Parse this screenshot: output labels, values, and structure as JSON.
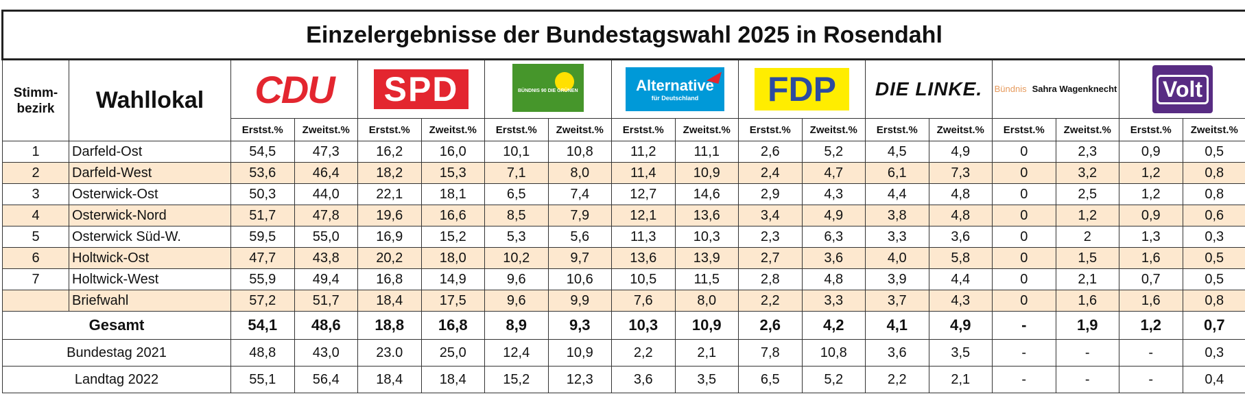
{
  "title": "Einzelergebnisse der Bundestagswahl 2025 in Rosendahl",
  "header": {
    "stimmbezirk": "Stimm-\nbezirk",
    "wahllokal": "Wahllokal",
    "erst": "Erstst.%",
    "zweit": "Zweitst.%"
  },
  "parties": [
    {
      "logo": "CDU"
    },
    {
      "logo": "SPD"
    },
    {
      "logo": "BÜNDNIS 90 DIE GRÜNEN"
    },
    {
      "logo": "Alternative",
      "logo_sub": "für Deutschland"
    },
    {
      "logo": "FDP"
    },
    {
      "logo": "DIE LINKE."
    },
    {
      "logo": "Bündnis",
      "logo_sub": "Sahra Wagenknecht"
    },
    {
      "logo": "Volt"
    }
  ],
  "rows": [
    {
      "nr": "1",
      "name": "Darfeld-Ost",
      "values": [
        "54,5",
        "47,3",
        "16,2",
        "16,0",
        "10,1",
        "10,8",
        "11,2",
        "11,1",
        "2,6",
        "5,2",
        "4,5",
        "4,9",
        "0",
        "2,3",
        "0,9",
        "0,5"
      ]
    },
    {
      "nr": "2",
      "name": "Darfeld-West",
      "values": [
        "53,6",
        "46,4",
        "18,2",
        "15,3",
        "7,1",
        "8,0",
        "11,4",
        "10,9",
        "2,4",
        "4,7",
        "6,1",
        "7,3",
        "0",
        "3,2",
        "1,2",
        "0,8"
      ]
    },
    {
      "nr": "3",
      "name": "Osterwick-Ost",
      "values": [
        "50,3",
        "44,0",
        "22,1",
        "18,1",
        "6,5",
        "7,4",
        "12,7",
        "14,6",
        "2,9",
        "4,3",
        "4,4",
        "4,8",
        "0",
        "2,5",
        "1,2",
        "0,8"
      ]
    },
    {
      "nr": "4",
      "name": "Osterwick-Nord",
      "values": [
        "51,7",
        "47,8",
        "19,6",
        "16,6",
        "8,5",
        "7,9",
        "12,1",
        "13,6",
        "3,4",
        "4,9",
        "3,8",
        "4,8",
        "0",
        "1,2",
        "0,9",
        "0,6"
      ]
    },
    {
      "nr": "5",
      "name": "Osterwick Süd-W.",
      "values": [
        "59,5",
        "55,0",
        "16,9",
        "15,2",
        "5,3",
        "5,6",
        "11,3",
        "10,3",
        "2,3",
        "6,3",
        "3,3",
        "3,6",
        "0",
        "2",
        "1,3",
        "0,3"
      ]
    },
    {
      "nr": "6",
      "name": "Holtwick-Ost",
      "values": [
        "47,7",
        "43,8",
        "20,2",
        "18,0",
        "10,2",
        "9,7",
        "13,6",
        "13,9",
        "2,7",
        "3,6",
        "4,0",
        "5,8",
        "0",
        "1,5",
        "1,6",
        "0,5"
      ]
    },
    {
      "nr": "7",
      "name": "Holtwick-West",
      "values": [
        "55,9",
        "49,4",
        "16,8",
        "14,9",
        "9,6",
        "10,6",
        "10,5",
        "11,5",
        "2,8",
        "4,8",
        "3,9",
        "4,4",
        "0",
        "2,1",
        "0,7",
        "0,5"
      ]
    },
    {
      "nr": "",
      "name": "Briefwahl",
      "values": [
        "57,2",
        "51,7",
        "18,4",
        "17,5",
        "9,6",
        "9,9",
        "7,6",
        "8,0",
        "2,2",
        "3,3",
        "3,7",
        "4,3",
        "0",
        "1,6",
        "1,6",
        "0,8"
      ]
    }
  ],
  "total": {
    "name": "Gesamt",
    "values": [
      "54,1",
      "48,6",
      "18,8",
      "16,8",
      "8,9",
      "9,3",
      "10,3",
      "10,9",
      "2,6",
      "4,2",
      "4,1",
      "4,9",
      "-",
      "1,9",
      "1,2",
      "0,7"
    ]
  },
  "history": [
    {
      "name": "Bundestag 2021",
      "values": [
        "48,8",
        "43,0",
        "23.0",
        "25,0",
        "12,4",
        "10,9",
        "2,2",
        "2,1",
        "7,8",
        "10,8",
        "3,6",
        "3,5",
        "-",
        "-",
        "-",
        "0,3"
      ]
    },
    {
      "name": "Landtag 2022",
      "values": [
        "55,1",
        "56,4",
        "18,4",
        "18,4",
        "15,2",
        "12,3",
        "3,6",
        "3,5",
        "6,5",
        "5,2",
        "2,2",
        "2,1",
        "-",
        "-",
        "-",
        "0,4"
      ]
    }
  ]
}
